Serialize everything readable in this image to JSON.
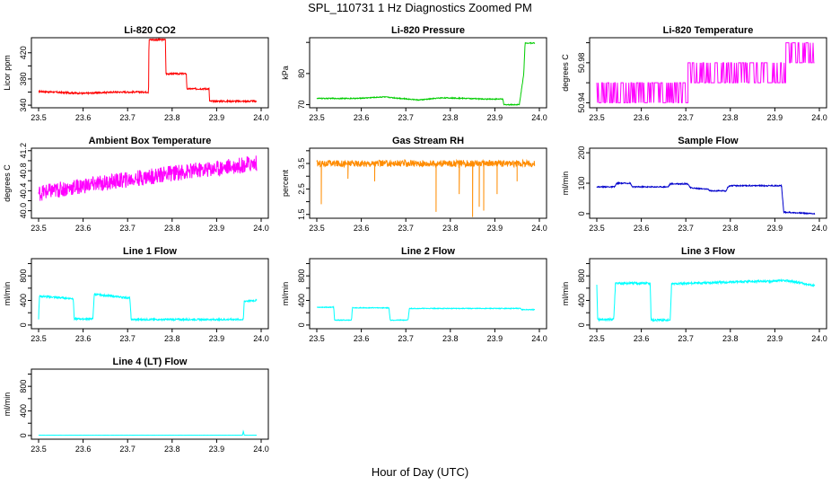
{
  "title": "SPL_110731  1 Hz Diagnostics Zoomed PM",
  "x_axis_title": "Hour of Day (UTC)",
  "chart_data": [
    {
      "type": "line",
      "title": "Li-820 CO2",
      "ylabel": "Licor ppm",
      "color": "#ff0000",
      "xlim": [
        23.5,
        24.0
      ],
      "ylim": [
        336,
        443
      ],
      "xticks": [
        23.5,
        23.6,
        23.7,
        23.8,
        23.9,
        24.0
      ],
      "xtick_labels": [
        "23.5",
        "23.6",
        "23.7",
        "23.8",
        "23.9",
        "24.0"
      ],
      "yticks": [
        340,
        360,
        380,
        400,
        420
      ],
      "ytick_labels": [
        "340",
        "",
        "380",
        "",
        "420"
      ],
      "segments": [
        [
          23.5,
          361
        ],
        [
          23.6,
          358
        ],
        [
          23.67,
          360
        ],
        [
          23.747,
          360
        ],
        [
          23.748,
          440
        ],
        [
          23.785,
          440
        ],
        [
          23.786,
          388
        ],
        [
          23.832,
          388
        ],
        [
          23.833,
          365
        ],
        [
          23.883,
          365
        ],
        [
          23.884,
          346
        ],
        [
          23.99,
          346
        ],
        [
          23.99,
          347
        ]
      ],
      "noise": 1.2
    },
    {
      "type": "line",
      "title": "Li-820 Pressure",
      "ylabel": "kPa",
      "color": "#00cc00",
      "xlim": [
        23.5,
        24.0
      ],
      "ylim": [
        69,
        91.5
      ],
      "xticks": [
        23.5,
        23.6,
        23.7,
        23.8,
        23.9,
        24.0
      ],
      "xtick_labels": [
        "23.5",
        "23.6",
        "23.7",
        "23.8",
        "23.9",
        "24.0"
      ],
      "yticks": [
        70,
        80,
        90
      ],
      "ytick_labels": [
        "70",
        "80",
        ""
      ],
      "segments": [
        [
          23.5,
          72
        ],
        [
          23.59,
          72
        ],
        [
          23.65,
          72.5
        ],
        [
          23.73,
          71.5
        ],
        [
          23.78,
          72.2
        ],
        [
          23.84,
          72
        ],
        [
          23.875,
          71.8
        ],
        [
          23.918,
          71.8
        ],
        [
          23.92,
          70
        ],
        [
          23.955,
          70
        ],
        [
          23.965,
          80
        ],
        [
          23.968,
          89.8
        ],
        [
          23.99,
          89.8
        ]
      ],
      "noise": 0.15
    },
    {
      "type": "line",
      "title": "Li-820 Temperature",
      "ylabel": "degrees C",
      "color": "#ff00ff",
      "xlim": [
        23.5,
        24.0
      ],
      "ylim": [
        50.935,
        51.005
      ],
      "xticks": [
        23.5,
        23.6,
        23.7,
        23.8,
        23.9,
        24.0
      ],
      "xtick_labels": [
        "23.5",
        "23.6",
        "23.7",
        "23.8",
        "23.9",
        "24.0"
      ],
      "yticks": [
        50.94,
        50.96,
        50.98,
        51.0
      ],
      "ytick_labels": [
        "50.94",
        "",
        "50.98",
        ""
      ],
      "levels": [
        50.94,
        50.96,
        50.98,
        51.0
      ],
      "steps": [
        [
          23.5,
          23.652,
          1,
          0
        ],
        [
          23.652,
          23.705,
          1,
          0
        ],
        [
          23.705,
          23.925,
          2,
          1
        ],
        [
          23.925,
          23.99,
          3,
          2
        ]
      ],
      "segments": [
        [
          23.5,
          50.96
        ]
      ],
      "noise": 0
    },
    {
      "type": "line",
      "title": "Ambient Box Temperature",
      "ylabel": "degrees C",
      "color": "#ff00ff",
      "xlim": [
        23.5,
        24.0
      ],
      "ylim": [
        39.85,
        41.25
      ],
      "xticks": [
        23.5,
        23.6,
        23.7,
        23.8,
        23.9,
        24.0
      ],
      "xtick_labels": [
        "23.5",
        "23.6",
        "23.7",
        "23.8",
        "23.9",
        "24.0"
      ],
      "yticks": [
        40.0,
        40.2,
        40.4,
        40.6,
        40.8,
        41.0,
        41.2
      ],
      "ytick_labels": [
        "40.0",
        "",
        "40.4",
        "",
        "40.8",
        "",
        "41.2"
      ],
      "segments": [
        [
          23.5,
          40.35
        ],
        [
          23.6,
          40.5
        ],
        [
          23.7,
          40.62
        ],
        [
          23.8,
          40.75
        ],
        [
          23.9,
          40.85
        ],
        [
          23.99,
          40.95
        ]
      ],
      "noise": 0.16
    },
    {
      "type": "line",
      "title": "Gas Stream RH",
      "ylabel": "percent",
      "color": "#ff8c00",
      "xlim": [
        23.5,
        24.0
      ],
      "ylim": [
        1.35,
        4.1
      ],
      "xticks": [
        23.5,
        23.6,
        23.7,
        23.8,
        23.9,
        24.0
      ],
      "xtick_labels": [
        "23.5",
        "23.6",
        "23.7",
        "23.8",
        "23.9",
        "24.0"
      ],
      "yticks": [
        1.5,
        2.0,
        2.5,
        3.0,
        3.5,
        4.0
      ],
      "ytick_labels": [
        "1.5",
        "",
        "2.5",
        "",
        "3.5",
        ""
      ],
      "segments": [
        [
          23.5,
          3.5
        ],
        [
          23.99,
          3.5
        ]
      ],
      "noise": 0.13,
      "spikes": [
        [
          23.51,
          1.9
        ],
        [
          23.57,
          2.9
        ],
        [
          23.63,
          2.8
        ],
        [
          23.768,
          1.6
        ],
        [
          23.82,
          2.3
        ],
        [
          23.85,
          1.4
        ],
        [
          23.865,
          1.8
        ],
        [
          23.875,
          1.65
        ],
        [
          23.905,
          2.3
        ],
        [
          23.95,
          2.8
        ]
      ]
    },
    {
      "type": "line",
      "title": "Sample Flow",
      "ylabel": "ml/min",
      "color": "#0000cc",
      "xlim": [
        23.5,
        24.0
      ],
      "ylim": [
        -15,
        215
      ],
      "xticks": [
        23.5,
        23.6,
        23.7,
        23.8,
        23.9,
        24.0
      ],
      "xtick_labels": [
        "23.5",
        "23.6",
        "23.7",
        "23.8",
        "23.9",
        "24.0"
      ],
      "yticks": [
        0,
        100,
        200
      ],
      "ytick_labels": [
        "0",
        "100",
        "200"
      ],
      "segments": [
        [
          23.5,
          88
        ],
        [
          23.54,
          88
        ],
        [
          23.545,
          100
        ],
        [
          23.575,
          100
        ],
        [
          23.58,
          88
        ],
        [
          23.66,
          88
        ],
        [
          23.665,
          98
        ],
        [
          23.705,
          98
        ],
        [
          23.71,
          85
        ],
        [
          23.75,
          80
        ],
        [
          23.755,
          75
        ],
        [
          23.79,
          75
        ],
        [
          23.795,
          88
        ],
        [
          23.8,
          92
        ],
        [
          23.915,
          92
        ],
        [
          23.92,
          5
        ],
        [
          23.99,
          0
        ]
      ],
      "noise": 1.8
    },
    {
      "type": "line",
      "title": "Line 1 Flow",
      "ylabel": "ml/min",
      "color": "#00ffff",
      "xlim": [
        23.5,
        24.0
      ],
      "ylim": [
        -60,
        1080
      ],
      "xticks": [
        23.5,
        23.6,
        23.7,
        23.8,
        23.9,
        24.0
      ],
      "xtick_labels": [
        "23.5",
        "23.6",
        "23.7",
        "23.8",
        "23.9",
        "24.0"
      ],
      "yticks": [
        0,
        200,
        400,
        600,
        800,
        1000
      ],
      "ytick_labels": [
        "0",
        "",
        "400",
        "",
        "800",
        ""
      ],
      "segments": [
        [
          23.5,
          100
        ],
        [
          23.502,
          470
        ],
        [
          23.578,
          430
        ],
        [
          23.58,
          100
        ],
        [
          23.622,
          100
        ],
        [
          23.625,
          500
        ],
        [
          23.705,
          440
        ],
        [
          23.708,
          90
        ],
        [
          23.96,
          90
        ],
        [
          23.962,
          390
        ],
        [
          23.99,
          400
        ]
      ],
      "noise": 14
    },
    {
      "type": "line",
      "title": "Line 2 Flow",
      "ylabel": "ml/min",
      "color": "#00ffff",
      "xlim": [
        23.5,
        24.0
      ],
      "ylim": [
        -60,
        1080
      ],
      "xticks": [
        23.5,
        23.6,
        23.7,
        23.8,
        23.9,
        24.0
      ],
      "xtick_labels": [
        "23.5",
        "23.6",
        "23.7",
        "23.8",
        "23.9",
        "24.0"
      ],
      "yticks": [
        0,
        200,
        400,
        600,
        800,
        1000
      ],
      "ytick_labels": [
        "0",
        "",
        "400",
        "",
        "800",
        ""
      ],
      "segments": [
        [
          23.5,
          290
        ],
        [
          23.538,
          290
        ],
        [
          23.54,
          80
        ],
        [
          23.578,
          80
        ],
        [
          23.58,
          280
        ],
        [
          23.662,
          280
        ],
        [
          23.665,
          80
        ],
        [
          23.705,
          80
        ],
        [
          23.708,
          270
        ],
        [
          23.958,
          270
        ],
        [
          23.96,
          250
        ],
        [
          23.99,
          250
        ]
      ],
      "noise": 6
    },
    {
      "type": "line",
      "title": "Line 3 Flow",
      "ylabel": "ml/min",
      "color": "#00ffff",
      "xlim": [
        23.5,
        24.0
      ],
      "ylim": [
        -60,
        1080
      ],
      "xticks": [
        23.5,
        23.6,
        23.7,
        23.8,
        23.9,
        24.0
      ],
      "xtick_labels": [
        "23.5",
        "23.6",
        "23.7",
        "23.8",
        "23.9",
        "24.0"
      ],
      "yticks": [
        0,
        200,
        400,
        600,
        800,
        1000
      ],
      "ytick_labels": [
        "0",
        "",
        "400",
        "",
        "800",
        ""
      ],
      "segments": [
        [
          23.5,
          650
        ],
        [
          23.502,
          90
        ],
        [
          23.538,
          90
        ],
        [
          23.542,
          680
        ],
        [
          23.62,
          680
        ],
        [
          23.622,
          80
        ],
        [
          23.665,
          80
        ],
        [
          23.668,
          670
        ],
        [
          23.8,
          700
        ],
        [
          23.93,
          720
        ],
        [
          23.955,
          690
        ],
        [
          23.99,
          640
        ]
      ],
      "noise": 18
    },
    {
      "type": "line",
      "title": "Line 4 (LT) Flow",
      "ylabel": "ml/min",
      "color": "#00ffff",
      "xlim": [
        23.5,
        24.0
      ],
      "ylim": [
        -60,
        1080
      ],
      "xticks": [
        23.5,
        23.6,
        23.7,
        23.8,
        23.9,
        24.0
      ],
      "xtick_labels": [
        "23.5",
        "23.6",
        "23.7",
        "23.8",
        "23.9",
        "24.0"
      ],
      "yticks": [
        0,
        200,
        400,
        600,
        800,
        1000
      ],
      "ytick_labels": [
        "0",
        "",
        "400",
        "",
        "800",
        ""
      ],
      "segments": [
        [
          23.5,
          5
        ],
        [
          23.958,
          5
        ],
        [
          23.96,
          70
        ],
        [
          23.962,
          5
        ],
        [
          23.99,
          5
        ]
      ],
      "noise": 1
    }
  ]
}
